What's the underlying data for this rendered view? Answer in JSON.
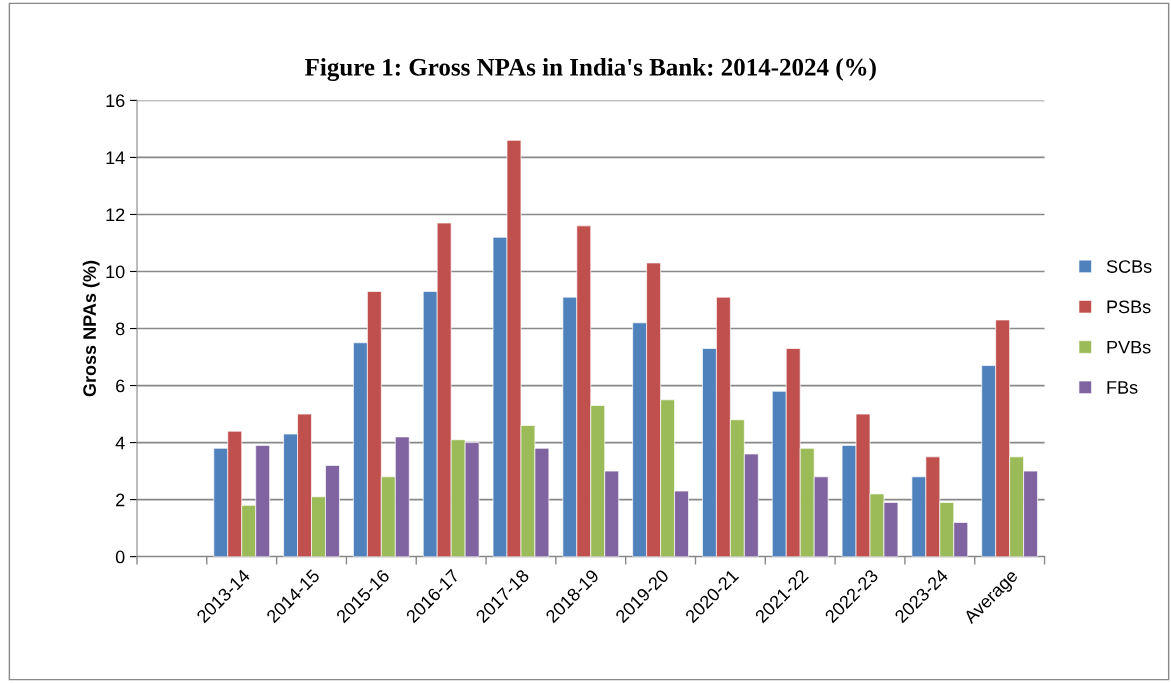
{
  "chart_data": {
    "type": "bar",
    "title": "Figure 1: Gross NPAs in India's Bank: 2014-2024 (%)",
    "ylabel": "Gross NPAs (%)",
    "categories": [
      null,
      "2013-14",
      "2014-15",
      "2015-16",
      "2016-17",
      "2017-18",
      "2018-19",
      "2019-20",
      "2020-21",
      "2021-22",
      "2022-23",
      "2023-24",
      "Average"
    ],
    "series": [
      {
        "name": "SCBs",
        "color": "#4f81bd",
        "values": [
          null,
          3.8,
          4.3,
          7.5,
          9.3,
          11.2,
          9.1,
          8.2,
          7.3,
          5.8,
          3.9,
          2.8,
          6.7
        ]
      },
      {
        "name": "PSBs",
        "color": "#c0504d",
        "values": [
          null,
          4.4,
          5.0,
          9.3,
          11.7,
          14.6,
          11.6,
          10.3,
          9.1,
          7.3,
          5.0,
          3.5,
          8.3
        ]
      },
      {
        "name": "PVBs",
        "color": "#9bbb59",
        "values": [
          null,
          1.8,
          2.1,
          2.8,
          4.1,
          4.6,
          5.3,
          5.5,
          4.8,
          3.8,
          2.2,
          1.9,
          3.5
        ]
      },
      {
        "name": "FBs",
        "color": "#8064a2",
        "values": [
          null,
          3.9,
          3.2,
          4.2,
          4.0,
          3.8,
          3.0,
          2.3,
          3.6,
          2.8,
          1.9,
          1.2,
          3.0
        ]
      }
    ],
    "ylim": [
      0,
      16
    ],
    "yticks": [
      0,
      2,
      4,
      6,
      8,
      10,
      12,
      14,
      16
    ],
    "grid": "y",
    "legend": "right"
  }
}
